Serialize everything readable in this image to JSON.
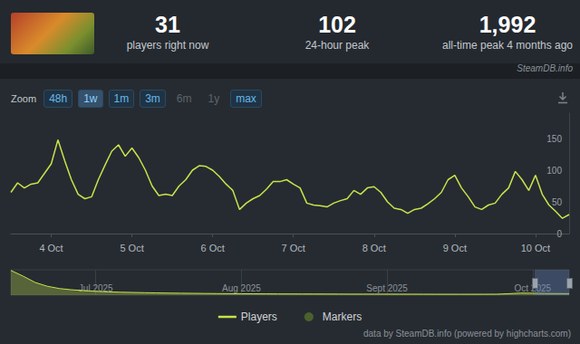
{
  "header": {
    "stats": [
      {
        "value": "31",
        "label": "players right now"
      },
      {
        "value": "102",
        "label": "24-hour peak"
      },
      {
        "value": "1,992",
        "label": "all-time peak 4 months ago"
      }
    ],
    "source": "SteamDB.info"
  },
  "zoom": {
    "label": "Zoom",
    "buttons": [
      "48h",
      "1w",
      "1m",
      "3m",
      "6m",
      "1y",
      "max"
    ],
    "active": "1w",
    "disabled": [
      "6m",
      "1y"
    ]
  },
  "credits": "data by SteamDB.info (powered by highcharts.com)",
  "chart_data": [
    {
      "type": "line",
      "categories": [
        null,
        null,
        null,
        null,
        null,
        null,
        "4 Oct",
        null,
        null,
        null,
        null,
        null,
        null,
        null,
        null,
        null,
        null,
        null,
        "5 Oct",
        null,
        null,
        null,
        null,
        null,
        null,
        null,
        null,
        null,
        null,
        null,
        "6 Oct",
        null,
        null,
        null,
        null,
        null,
        null,
        null,
        null,
        null,
        null,
        null,
        "7 Oct",
        null,
        null,
        null,
        null,
        null,
        null,
        null,
        null,
        null,
        null,
        null,
        "8 Oct",
        null,
        null,
        null,
        null,
        null,
        null,
        null,
        null,
        null,
        null,
        null,
        "9 Oct",
        null,
        null,
        null,
        null,
        null,
        null,
        null,
        null,
        null,
        null,
        null,
        "10 Oct",
        null,
        null,
        null,
        null,
        null
      ],
      "series": [
        {
          "name": "Players",
          "color": "#c9e34a",
          "values": [
            65,
            80,
            72,
            78,
            80,
            95,
            110,
            148,
            115,
            85,
            62,
            55,
            58,
            85,
            108,
            130,
            140,
            122,
            135,
            120,
            100,
            75,
            60,
            62,
            60,
            75,
            85,
            100,
            107,
            106,
            100,
            90,
            78,
            68,
            38,
            48,
            55,
            60,
            70,
            82,
            82,
            85,
            78,
            72,
            48,
            45,
            44,
            42,
            48,
            52,
            55,
            68,
            62,
            72,
            74,
            65,
            50,
            40,
            38,
            32,
            38,
            40,
            47,
            55,
            65,
            85,
            92,
            72,
            58,
            42,
            38,
            45,
            48,
            62,
            72,
            98,
            85,
            68,
            92,
            62,
            45,
            35,
            24,
            30
          ]
        },
        {
          "name": "Markers",
          "type": "scatter",
          "marker": "circle",
          "color": "#55702c",
          "values": [
            null,
            null,
            null,
            null,
            null,
            null,
            null,
            null,
            null,
            null,
            null,
            null,
            null,
            null,
            null,
            null,
            null,
            null,
            null,
            null,
            null,
            null,
            null,
            null,
            null,
            null,
            null,
            null,
            null,
            null,
            null,
            null,
            null,
            null,
            null,
            null,
            null,
            null,
            null,
            null,
            null,
            null,
            null,
            null,
            null,
            null,
            null,
            null,
            null,
            null,
            null,
            null,
            null,
            null,
            null,
            null,
            null,
            null,
            null,
            null,
            null,
            null,
            null,
            null,
            null,
            null,
            null,
            null,
            null,
            null,
            null,
            null,
            null,
            null,
            null,
            null,
            null,
            null,
            null,
            null,
            null,
            null,
            null,
            null
          ]
        }
      ],
      "ylim": [
        0,
        190
      ],
      "yticks": [
        0,
        50,
        100,
        150
      ],
      "grid": false,
      "legend": "bottom"
    },
    {
      "type": "area",
      "categories": [
        null,
        null,
        null,
        null,
        null,
        null,
        null,
        "Jul 2025",
        null,
        null,
        null,
        null,
        null,
        null,
        null,
        null,
        null,
        null,
        null,
        "Aug 2025",
        null,
        null,
        null,
        null,
        null,
        null,
        null,
        null,
        null,
        null,
        null,
        "Sept 2025",
        null,
        null,
        null,
        null,
        null,
        null,
        null,
        null,
        null,
        null,
        null,
        "Oct 2025",
        null,
        null,
        null
      ],
      "values": [
        1950,
        1500,
        1000,
        700,
        520,
        420,
        360,
        300,
        260,
        230,
        210,
        190,
        175,
        160,
        150,
        140,
        130,
        120,
        115,
        110,
        105,
        100,
        95,
        92,
        90,
        88,
        85,
        82,
        80,
        80,
        78,
        76,
        75,
        74,
        72,
        70,
        70,
        68,
        68,
        70,
        72,
        110,
        160,
        150,
        130,
        120,
        115
      ],
      "color": "#c9e34a",
      "ylim": [
        0,
        2000
      ],
      "tick_labels": "x",
      "grid": true
    }
  ]
}
